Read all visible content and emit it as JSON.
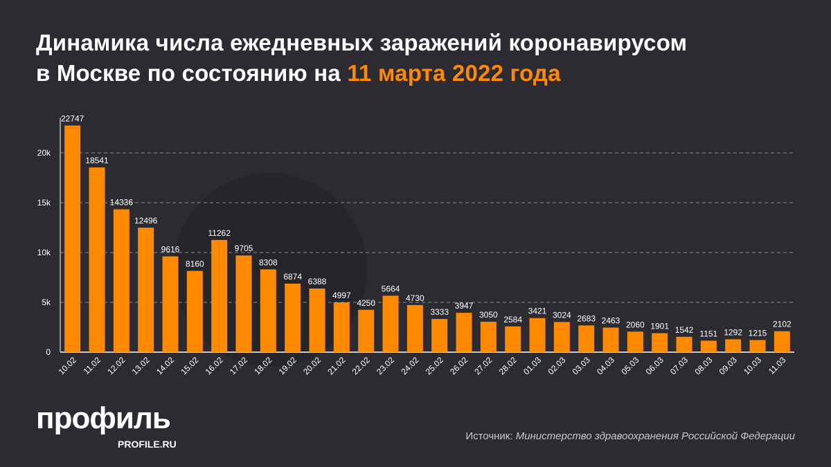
{
  "title": {
    "line1": "Динамика числа ежедневных заражений коронавирусом",
    "line2_prefix": "в Москве по состоянию на ",
    "line2_highlight": "11 марта 2022 года"
  },
  "colors": {
    "bar": "#ff8a00",
    "background": "#2b2b31",
    "highlight": "#ff8a00"
  },
  "chart_data": {
    "type": "bar",
    "categories": [
      "10.02",
      "11.02",
      "12.02",
      "13.02",
      "14.02",
      "15.02",
      "16.02",
      "17.02",
      "18.02",
      "19.02",
      "20.02",
      "21.02",
      "22.02",
      "23.02",
      "24.02",
      "25.02",
      "26.02",
      "27.02",
      "28.02",
      "01.03",
      "02.03",
      "03.03",
      "04.03",
      "05.03",
      "06.03",
      "07.03",
      "08.03",
      "09.03",
      "10.03",
      "11.03"
    ],
    "values": [
      22747,
      18541,
      14336,
      12496,
      9616,
      8160,
      11262,
      9705,
      8308,
      6874,
      6388,
      4997,
      4250,
      5664,
      4730,
      3333,
      3947,
      3050,
      2584,
      3421,
      3024,
      2683,
      2463,
      2060,
      1901,
      1542,
      1151,
      1292,
      1215,
      2102
    ],
    "yticks": [
      0,
      5000,
      10000,
      15000,
      20000
    ],
    "ytick_labels": [
      "0",
      "5k",
      "10k",
      "15k",
      "20k"
    ],
    "ylim": [
      0,
      22747
    ],
    "grid": "horizontal dashed",
    "data_labels": true
  },
  "logo": {
    "name": "профиль",
    "domain": "PROFILE.RU"
  },
  "source": {
    "label": "Источник: ",
    "value": "Министерство здравоохранения Российской Федерации"
  }
}
